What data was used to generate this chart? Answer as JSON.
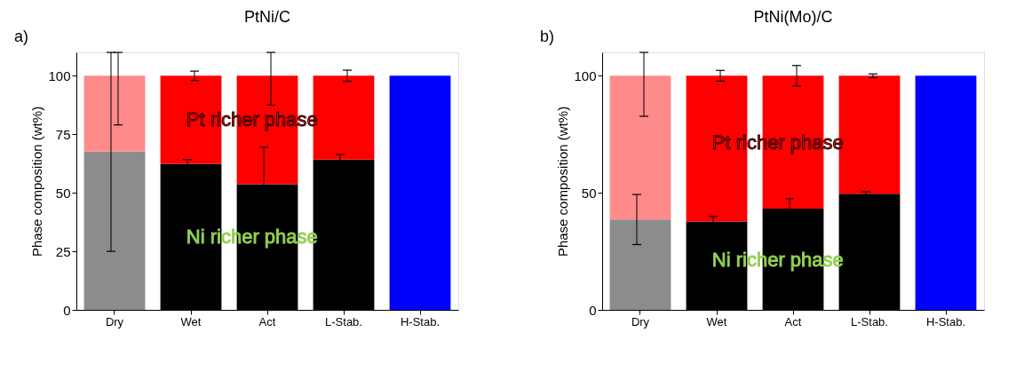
{
  "chart_data": [
    {
      "type": "bar",
      "title": "PtNi/C",
      "ylabel": "Phase composition (wt%)",
      "stacked": true,
      "legend": false,
      "grid": false,
      "annotations": [
        "a)"
      ],
      "categories": [
        "Dry",
        "Wet",
        "Act",
        "L-Stab.",
        "H-Stab."
      ],
      "ylim": [
        0,
        110
      ],
      "yticks": [
        0,
        25,
        50,
        75,
        100
      ],
      "series": [
        {
          "name": "Ni richer phase",
          "color": "#000000",
          "colors": [
            "#8c8c8c",
            "#000000",
            "#000000",
            "#000000",
            "#000000"
          ],
          "values": [
            67.6,
            62.4,
            53.7,
            64.2,
            null
          ],
          "errors": [
            [
              25,
              110
            ],
            1.8,
            15.8,
            2.2,
            null
          ]
        },
        {
          "name": "Pt richer phase",
          "color": "#ff0000",
          "colors": [
            "#ff8a8a",
            "#ff0000",
            "#ff0000",
            "#ff0000",
            "#ff0000"
          ],
          "values": [
            32.4,
            37.6,
            46.3,
            35.8,
            null
          ],
          "errors": [
            [
              79,
              110
            ],
            2,
            [
              87.5,
              110
            ],
            2.4,
            null
          ]
        },
        {
          "color": "#0000ff",
          "values": [
            null,
            null,
            null,
            null,
            100
          ]
        }
      ]
    },
    {
      "type": "bar",
      "title": "PtNi(Mo)/C",
      "ylabel": "Phase composition (wt%)",
      "stacked": true,
      "legend": false,
      "grid": false,
      "annotations": [
        "b)"
      ],
      "categories": [
        "Dry",
        "Wet",
        "Act",
        "L-Stab.",
        "H-Stab."
      ],
      "ylim": [
        0,
        110
      ],
      "yticks": [
        0,
        50,
        100
      ],
      "series": [
        {
          "name": "Ni richer phase",
          "color": "#000000",
          "colors": [
            "#8c8c8c",
            "#000000",
            "#000000",
            "#000000",
            "#000000"
          ],
          "values": [
            38.6,
            37.7,
            43.2,
            49.6,
            null
          ],
          "errors": [
            10.7,
            2.2,
            4.3,
            0.9,
            null
          ]
        },
        {
          "name": "Pt richer phase",
          "color": "#ff0000",
          "colors": [
            "#ff8a8a",
            "#ff0000",
            "#ff0000",
            "#ff0000",
            "#ff0000"
          ],
          "values": [
            61.4,
            62.3,
            56.8,
            50.4,
            null
          ],
          "errors": [
            [
              82.7,
              110
            ],
            2.3,
            4.4,
            0.8,
            null
          ]
        },
        {
          "color": "#0000ff",
          "values": [
            null,
            null,
            null,
            null,
            100
          ]
        }
      ]
    }
  ]
}
